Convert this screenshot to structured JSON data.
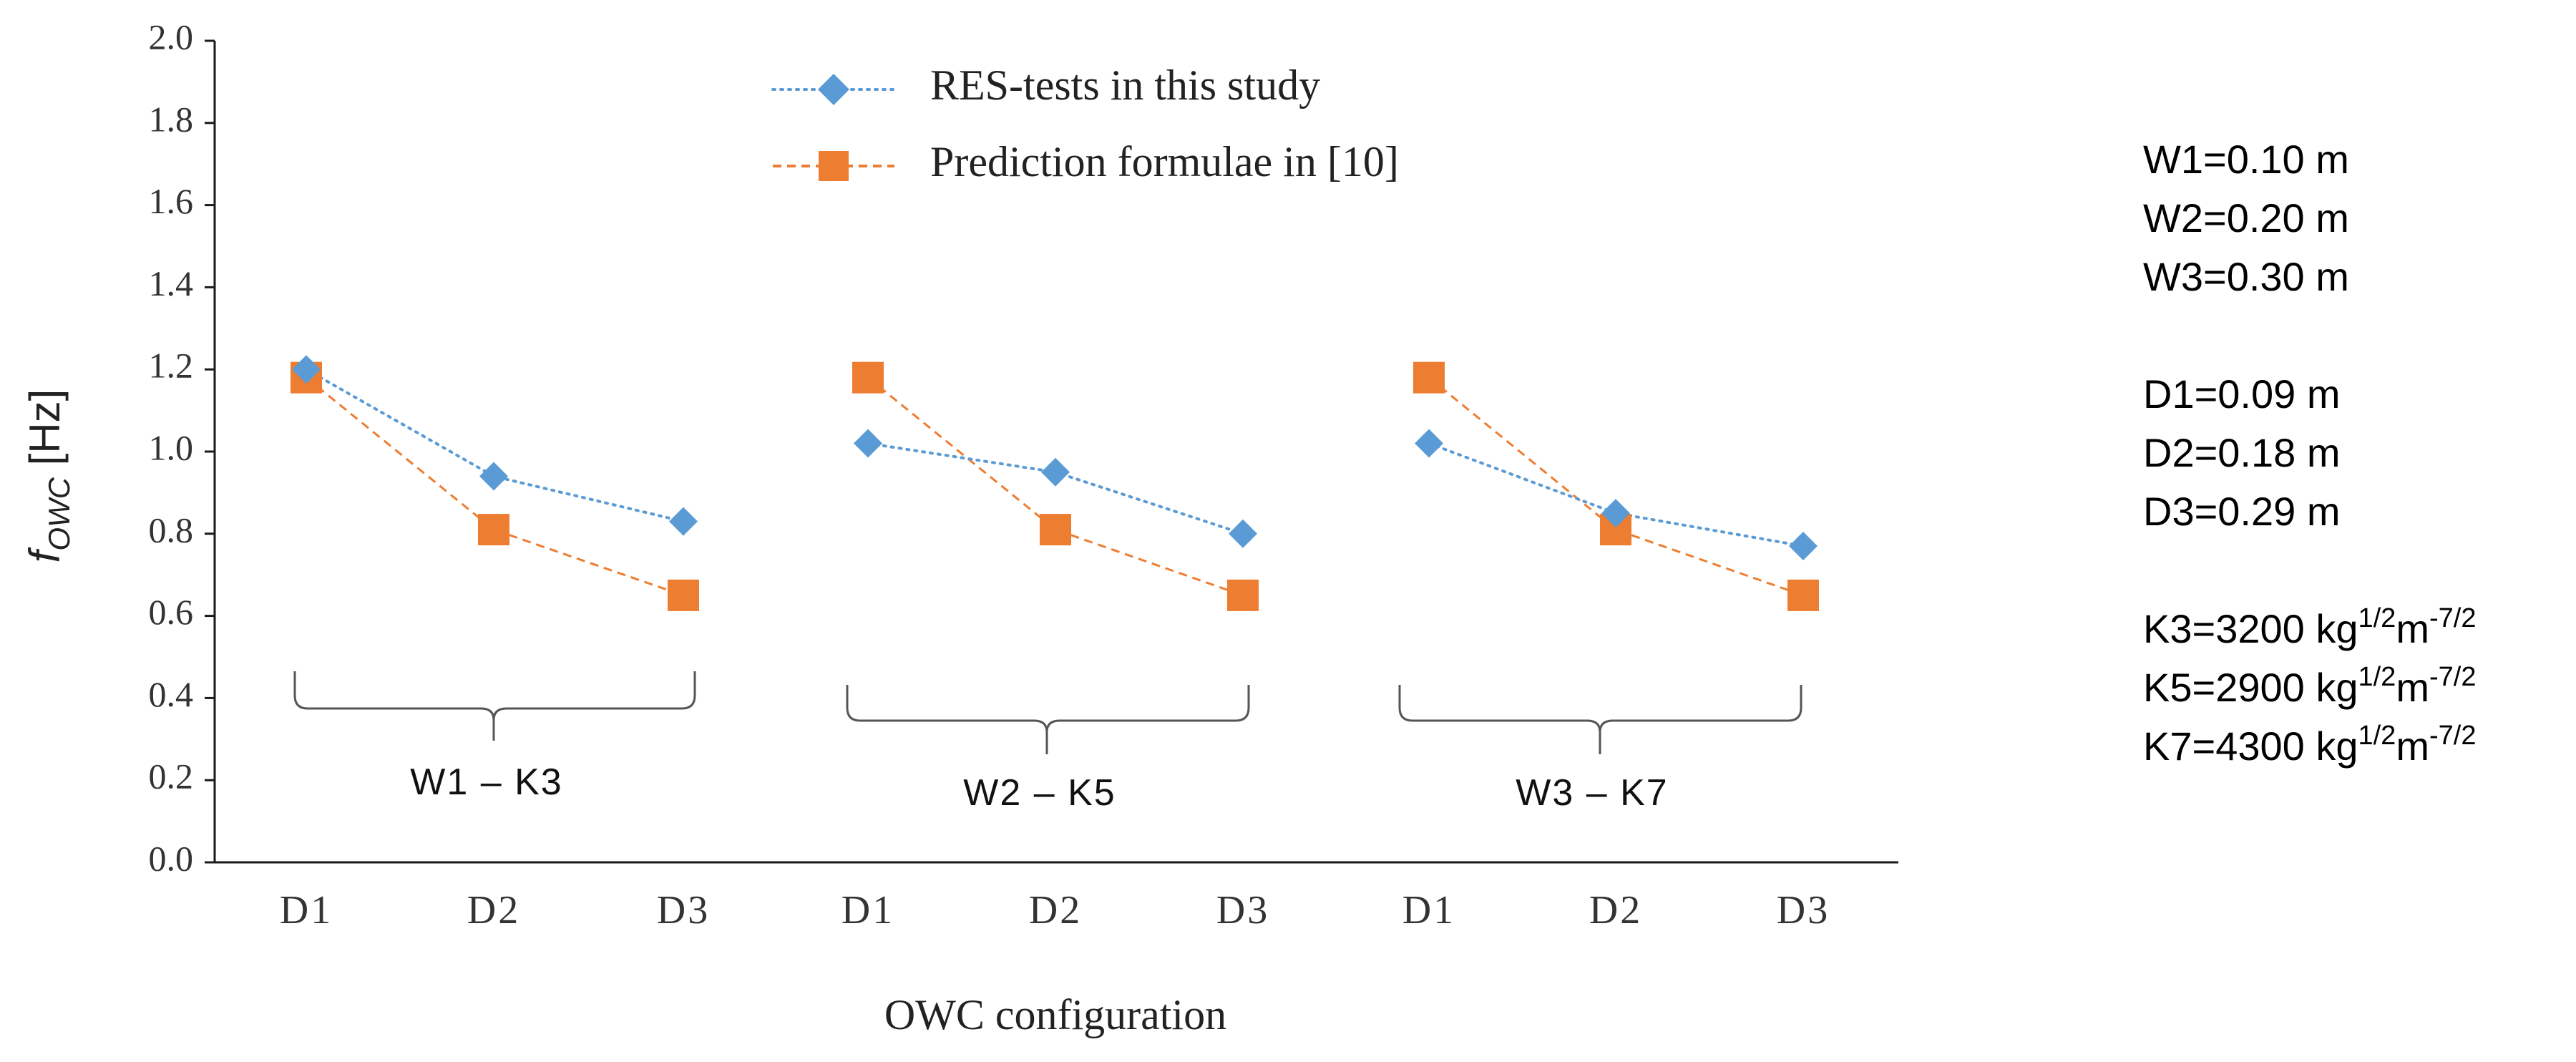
{
  "chart_data": {
    "type": "line",
    "title": "",
    "xlabel": "OWC configuration",
    "ylabel": {
      "base": "f",
      "sub": "OWC",
      "unit": " [Hz]"
    },
    "ylim": [
      0,
      2.0
    ],
    "yticks": [
      "0.0",
      "0.2",
      "0.4",
      "0.6",
      "0.8",
      "1.0",
      "1.2",
      "1.4",
      "1.6",
      "1.8",
      "2.0"
    ],
    "categories": [
      "D1",
      "D2",
      "D3",
      "D1",
      "D2",
      "D3",
      "D1",
      "D2",
      "D3"
    ],
    "legend_position": "top-center",
    "series": [
      {
        "name": "RES-tests in this study",
        "color": "#5b9bd5",
        "marker": "diamond",
        "line": "dotted",
        "groups": [
          [
            1.2,
            0.94,
            0.83
          ],
          [
            1.02,
            0.95,
            0.8
          ],
          [
            1.02,
            0.85,
            0.77
          ]
        ]
      },
      {
        "name": "Prediction formulae in [10]",
        "color": "#ed7d31",
        "marker": "square",
        "line": "dashed",
        "groups": [
          [
            1.18,
            0.81,
            0.65
          ],
          [
            1.18,
            0.81,
            0.65
          ],
          [
            1.18,
            0.81,
            0.65
          ]
        ]
      }
    ],
    "group_labels": [
      "W1 – K3",
      "W2 – K5",
      "W3 – K7"
    ],
    "notes": {
      "w": [
        "W1=0.10 m",
        "W2=0.20 m",
        "W3=0.30 m"
      ],
      "d": [
        "D1=0.09 m",
        "D2=0.18 m",
        "D3=0.29 m"
      ],
      "k": [
        {
          "prefix": "K3=3200 kg",
          "sup1": "1/2",
          "mid": "m",
          "sup2": "-7/2"
        },
        {
          "prefix": "K5=2900 kg",
          "sup1": "1/2",
          "mid": "m",
          "sup2": "-7/2"
        },
        {
          "prefix": "K7=4300 kg",
          "sup1": "1/2",
          "mid": "m",
          "sup2": "-7/2"
        }
      ]
    }
  }
}
